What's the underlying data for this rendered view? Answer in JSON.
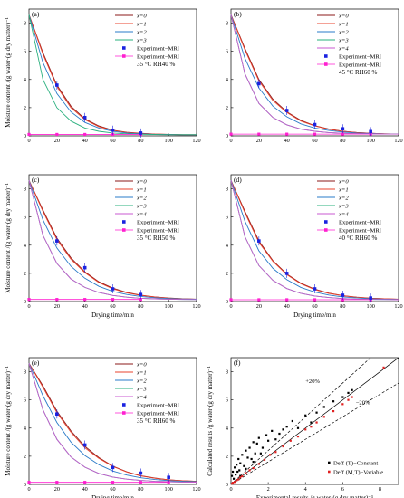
{
  "colors": {
    "x0": "#8b1a1a",
    "x1": "#e8432e",
    "x2": "#2a7bc8",
    "x3": "#2ab07e",
    "x4": "#c85ad0",
    "exp_blue": "#1a22e0",
    "exp_magenta": "#ff1fd0",
    "black": "#000000",
    "red_pts": "#e02020"
  },
  "chart_data": [
    {
      "type": "line",
      "panel_label": "(a)",
      "condition": "35 °C RH40 %",
      "xlabel": "",
      "ylabel": "Moisture content /(g water·(g dry matter)⁻¹",
      "xlim": [
        0,
        120
      ],
      "ylim": [
        0,
        9
      ],
      "xticks": [
        "0",
        "20",
        "40",
        "60",
        "80",
        "100",
        "120"
      ],
      "yticks": [
        "0",
        "2",
        "4",
        "6",
        "8"
      ],
      "x": [
        0,
        10,
        20,
        30,
        40,
        50,
        60,
        70,
        80,
        90,
        100,
        110,
        120
      ],
      "legend": [
        "x=0",
        "x=1",
        "x=2",
        "x=3",
        "Experiment−MRI",
        "Experiment−MRI"
      ],
      "series": [
        {
          "name": "x=0",
          "values": [
            8.6,
            5.9,
            3.6,
            2.1,
            1.2,
            0.7,
            0.4,
            0.25,
            0.18,
            0.12,
            0.1,
            0.08,
            0.08
          ]
        },
        {
          "name": "x=1",
          "values": [
            8.6,
            5.8,
            3.5,
            2.0,
            1.15,
            0.65,
            0.38,
            0.24,
            0.17,
            0.12,
            0.1,
            0.08,
            0.08
          ]
        },
        {
          "name": "x=2",
          "values": [
            8.6,
            5.2,
            3.0,
            1.7,
            0.95,
            0.55,
            0.32,
            0.2,
            0.14,
            0.1,
            0.09,
            0.08,
            0.08
          ]
        },
        {
          "name": "x=3",
          "values": [
            8.6,
            4.0,
            2.0,
            1.05,
            0.55,
            0.32,
            0.2,
            0.14,
            0.11,
            0.09,
            0.08,
            0.08,
            0.08
          ]
        }
      ],
      "exp_mri_blue": {
        "x": [
          20,
          40,
          60,
          80
        ],
        "y": [
          3.6,
          1.3,
          0.4,
          0.2
        ]
      },
      "exp_mri_magenta": {
        "x": [
          0,
          20,
          40,
          60,
          80
        ],
        "y": [
          0.1,
          0.1,
          0.1,
          0.1,
          0.1
        ]
      }
    },
    {
      "type": "line",
      "panel_label": "(b)",
      "condition": "45 °C RH60 %",
      "xlabel": "",
      "ylabel": "",
      "xlim": [
        0,
        120
      ],
      "ylim": [
        0,
        9
      ],
      "xticks": [
        "0",
        "20",
        "40",
        "60",
        "80",
        "100",
        "120"
      ],
      "yticks": [
        "0",
        "2",
        "4",
        "6",
        "8"
      ],
      "x": [
        0,
        10,
        20,
        30,
        40,
        50,
        60,
        70,
        80,
        90,
        100,
        110,
        120
      ],
      "legend": [
        "x=0",
        "x=1",
        "x=2",
        "x=3",
        "x=4",
        "Experiment−MRI",
        "Experiment−MRI"
      ],
      "series": [
        {
          "name": "x=0",
          "values": [
            8.6,
            6.2,
            4.0,
            2.6,
            1.7,
            1.1,
            0.72,
            0.48,
            0.33,
            0.24,
            0.18,
            0.14,
            0.12
          ]
        },
        {
          "name": "x=1",
          "values": [
            8.6,
            6.1,
            3.9,
            2.5,
            1.65,
            1.05,
            0.7,
            0.46,
            0.32,
            0.23,
            0.18,
            0.14,
            0.12
          ]
        },
        {
          "name": "x=2",
          "values": [
            8.6,
            5.5,
            3.4,
            2.1,
            1.35,
            0.85,
            0.55,
            0.38,
            0.27,
            0.2,
            0.16,
            0.13,
            0.12
          ]
        },
        {
          "name": "x=3",
          "values": [
            8.6,
            4.4,
            2.3,
            1.3,
            0.78,
            0.48,
            0.32,
            0.23,
            0.18,
            0.15,
            0.13,
            0.12,
            0.12
          ]
        },
        {
          "name": "x=4",
          "values": [
            8.6,
            4.4,
            2.3,
            1.3,
            0.78,
            0.48,
            0.32,
            0.23,
            0.18,
            0.15,
            0.13,
            0.12,
            0.12
          ]
        }
      ],
      "exp_mri_blue": {
        "x": [
          20,
          40,
          60,
          80,
          100
        ],
        "y": [
          3.7,
          1.8,
          0.8,
          0.5,
          0.3
        ]
      },
      "exp_mri_magenta": {
        "x": [
          0,
          20,
          40,
          60,
          80,
          100
        ],
        "y": [
          0.12,
          0.12,
          0.12,
          0.12,
          0.12,
          0.12
        ]
      }
    },
    {
      "type": "line",
      "panel_label": "(c)",
      "condition": "35 °C RH50 %",
      "xlabel": "Drying time/min",
      "ylabel": "Moisture content /(g water·(g dry matter)⁻¹",
      "xlim": [
        0,
        120
      ],
      "ylim": [
        0,
        9
      ],
      "xticks": [
        "0",
        "20",
        "40",
        "60",
        "80",
        "100",
        "120"
      ],
      "yticks": [
        "0",
        "2",
        "4",
        "6",
        "8"
      ],
      "x": [
        0,
        10,
        20,
        30,
        40,
        50,
        60,
        70,
        80,
        90,
        100,
        110,
        120
      ],
      "legend": [
        "x=0",
        "x=1",
        "x=2",
        "x=3",
        "x=4",
        "Experiment−MRI",
        "Experiment−MRI"
      ],
      "series": [
        {
          "name": "x=0",
          "values": [
            8.6,
            6.5,
            4.5,
            3.1,
            2.1,
            1.4,
            0.95,
            0.65,
            0.45,
            0.33,
            0.25,
            0.2,
            0.17
          ]
        },
        {
          "name": "x=1",
          "values": [
            8.6,
            6.4,
            4.4,
            3.0,
            2.05,
            1.35,
            0.9,
            0.62,
            0.44,
            0.32,
            0.24,
            0.2,
            0.17
          ]
        },
        {
          "name": "x=2",
          "values": [
            8.6,
            5.8,
            3.8,
            2.5,
            1.65,
            1.08,
            0.72,
            0.5,
            0.36,
            0.27,
            0.21,
            0.18,
            0.16
          ]
        },
        {
          "name": "x=3",
          "values": [
            8.6,
            4.7,
            2.7,
            1.6,
            1.0,
            0.64,
            0.43,
            0.31,
            0.23,
            0.19,
            0.17,
            0.15,
            0.14
          ]
        },
        {
          "name": "x=4",
          "values": [
            8.6,
            4.7,
            2.7,
            1.6,
            1.0,
            0.64,
            0.43,
            0.31,
            0.23,
            0.19,
            0.17,
            0.15,
            0.14
          ]
        }
      ],
      "exp_mri_blue": {
        "x": [
          20,
          40,
          60,
          80
        ],
        "y": [
          4.3,
          2.4,
          0.9,
          0.5
        ]
      },
      "exp_mri_magenta": {
        "x": [
          0,
          20,
          40,
          60,
          80
        ],
        "y": [
          0.15,
          0.15,
          0.15,
          0.15,
          0.15
        ]
      }
    },
    {
      "type": "line",
      "panel_label": "(d)",
      "condition": "40 °C RH60 %",
      "xlabel": "Drying time/min",
      "ylabel": "",
      "xlim": [
        0,
        120
      ],
      "ylim": [
        0,
        9
      ],
      "xticks": [
        "0",
        "20",
        "40",
        "60",
        "80",
        "100",
        "120"
      ],
      "yticks": [
        "0",
        "2",
        "4",
        "6",
        "8"
      ],
      "x": [
        0,
        10,
        20,
        30,
        40,
        50,
        60,
        70,
        80,
        90,
        100,
        110,
        120
      ],
      "legend": [
        "x=0",
        "x=1",
        "x=2",
        "x=3",
        "x=4",
        "Experiment−MRI",
        "Experiment−MRI"
      ],
      "series": [
        {
          "name": "x=0",
          "values": [
            8.6,
            6.4,
            4.3,
            2.9,
            1.95,
            1.3,
            0.88,
            0.6,
            0.42,
            0.31,
            0.24,
            0.19,
            0.16
          ]
        },
        {
          "name": "x=1",
          "values": [
            8.6,
            6.3,
            4.2,
            2.85,
            1.9,
            1.26,
            0.85,
            0.58,
            0.41,
            0.3,
            0.23,
            0.19,
            0.16
          ]
        },
        {
          "name": "x=2",
          "values": [
            8.6,
            5.7,
            3.6,
            2.35,
            1.55,
            1.0,
            0.67,
            0.46,
            0.33,
            0.25,
            0.2,
            0.17,
            0.15
          ]
        },
        {
          "name": "x=3",
          "values": [
            8.6,
            4.6,
            2.55,
            1.5,
            0.92,
            0.58,
            0.39,
            0.28,
            0.21,
            0.17,
            0.15,
            0.14,
            0.13
          ]
        },
        {
          "name": "x=4",
          "values": [
            8.6,
            4.6,
            2.55,
            1.5,
            0.92,
            0.58,
            0.39,
            0.28,
            0.21,
            0.17,
            0.15,
            0.14,
            0.13
          ]
        }
      ],
      "exp_mri_blue": {
        "x": [
          20,
          40,
          60,
          80,
          100
        ],
        "y": [
          4.3,
          2.0,
          0.9,
          0.45,
          0.25
        ]
      },
      "exp_mri_magenta": {
        "x": [
          0,
          20,
          40,
          60,
          80,
          100
        ],
        "y": [
          0.13,
          0.13,
          0.13,
          0.13,
          0.13,
          0.13
        ]
      }
    },
    {
      "type": "line",
      "panel_label": "(e)",
      "condition": "35 °C RH60 %",
      "xlabel": "Drying time/min",
      "ylabel": "Moisture content /(g water·(g dry matter)⁻¹",
      "xlim": [
        0,
        120
      ],
      "ylim": [
        0,
        9
      ],
      "xticks": [
        "0",
        "20",
        "40",
        "60",
        "80",
        "100",
        "120"
      ],
      "yticks": [
        "0",
        "2",
        "4",
        "6",
        "8"
      ],
      "x": [
        0,
        10,
        20,
        30,
        40,
        50,
        60,
        70,
        80,
        90,
        100,
        110,
        120
      ],
      "legend": [
        "x=0",
        "x=1",
        "x=2",
        "x=3",
        "x=4",
        "Experiment−MRI",
        "Experiment−MRI"
      ],
      "series": [
        {
          "name": "x=0",
          "values": [
            8.6,
            7.0,
            5.2,
            3.8,
            2.7,
            1.9,
            1.3,
            0.9,
            0.62,
            0.45,
            0.33,
            0.26,
            0.22
          ]
        },
        {
          "name": "x=1",
          "values": [
            8.6,
            6.9,
            5.1,
            3.7,
            2.6,
            1.85,
            1.27,
            0.88,
            0.6,
            0.44,
            0.32,
            0.26,
            0.22
          ]
        },
        {
          "name": "x=2",
          "values": [
            8.6,
            6.3,
            4.4,
            3.0,
            2.05,
            1.4,
            0.95,
            0.66,
            0.47,
            0.35,
            0.27,
            0.22,
            0.2
          ]
        },
        {
          "name": "x=3",
          "values": [
            8.6,
            5.3,
            3.2,
            1.95,
            1.22,
            0.78,
            0.52,
            0.37,
            0.28,
            0.22,
            0.19,
            0.17,
            0.16
          ]
        },
        {
          "name": "x=4",
          "values": [
            8.6,
            5.3,
            3.2,
            1.95,
            1.22,
            0.78,
            0.52,
            0.37,
            0.28,
            0.22,
            0.19,
            0.17,
            0.16
          ]
        }
      ],
      "exp_mri_blue": {
        "x": [
          20,
          40,
          60,
          80,
          100
        ],
        "y": [
          5.0,
          2.8,
          1.2,
          0.8,
          0.5
        ]
      },
      "exp_mri_magenta": {
        "x": [
          0,
          20,
          40,
          60,
          80,
          100
        ],
        "y": [
          0.15,
          0.15,
          0.15,
          0.15,
          0.15,
          0.15
        ]
      }
    },
    {
      "type": "scatter",
      "panel_label": "(f)",
      "xlabel": "Experimental results /g water·(g dry matter)⁻¹",
      "ylabel": "Calculated results /g water·(g dry matter)⁻¹",
      "xlim": [
        0,
        9
      ],
      "ylim": [
        0,
        9
      ],
      "xticks": [
        "0",
        "2",
        "4",
        "6",
        "8"
      ],
      "yticks": [
        "0",
        "2",
        "4",
        "6",
        "8"
      ],
      "annotations": [
        "+20%",
        "−20%"
      ],
      "legend": [
        "Deff (T)−Constant",
        "Deff (M,T)−Variable"
      ],
      "series": [
        {
          "name": "Deff (T)−Constant",
          "x": [
            0.05,
            0.1,
            0.15,
            0.2,
            0.25,
            0.3,
            0.35,
            0.4,
            0.45,
            0.5,
            0.6,
            0.7,
            0.8,
            0.9,
            1.0,
            1.1,
            1.2,
            1.3,
            1.4,
            1.5,
            1.7,
            1.9,
            2.0,
            2.2,
            2.4,
            2.6,
            2.8,
            3.0,
            3.3,
            3.6,
            4.0,
            4.3,
            4.6,
            5.0,
            5.5,
            6.0,
            6.3,
            6.5,
            0.3,
            0.5,
            0.8,
            1.2,
            1.6
          ],
          "y": [
            0.6,
            0.9,
            0.4,
            1.2,
            0.7,
            1.4,
            0.9,
            1.8,
            1.0,
            1.5,
            2.1,
            1.3,
            2.4,
            1.9,
            2.6,
            1.8,
            3.0,
            2.2,
            2.9,
            3.3,
            2.6,
            3.5,
            3.1,
            3.8,
            3.2,
            3.6,
            3.9,
            4.1,
            4.5,
            4.0,
            4.9,
            4.4,
            5.1,
            5.5,
            5.9,
            6.2,
            6.5,
            6.7,
            0.3,
            0.6,
            1.1,
            1.6,
            2.2
          ]
        },
        {
          "name": "Deff (M,T)−Variable",
          "x": [
            0.05,
            0.1,
            0.2,
            0.3,
            0.4,
            0.5,
            0.6,
            0.8,
            1.0,
            1.2,
            1.5,
            1.8,
            2.1,
            2.4,
            2.8,
            3.2,
            3.6,
            4.0,
            4.3,
            4.6,
            5.0,
            5.5,
            6.0,
            6.3,
            6.5,
            8.2
          ],
          "y": [
            0.05,
            0.12,
            0.18,
            0.3,
            0.35,
            0.5,
            0.58,
            0.8,
            1.0,
            1.15,
            1.45,
            1.75,
            2.1,
            2.3,
            2.7,
            3.1,
            3.4,
            3.9,
            4.1,
            4.4,
            4.8,
            5.2,
            5.7,
            6.0,
            6.2,
            8.3
          ]
        }
      ]
    }
  ]
}
